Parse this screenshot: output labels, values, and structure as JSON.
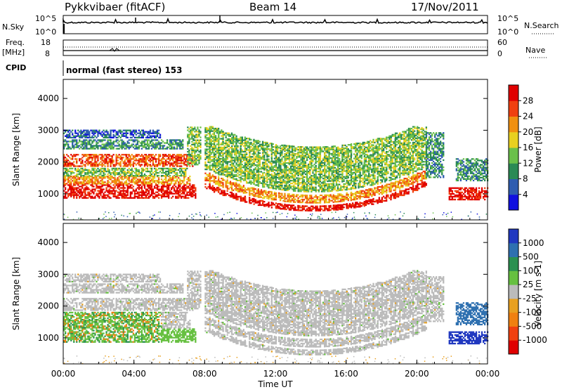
{
  "header": {
    "station": "Pykkvibaer (fitACF)",
    "beam": "Beam 14",
    "date": "17/Nov/2011"
  },
  "strips": {
    "nsky_label": "N.Sky",
    "nsky_ticks": [
      "10^5",
      "10^0"
    ],
    "nsearch_label": "N.Search",
    "nsearch_ticks": [
      "10^5",
      "10^0"
    ],
    "freq_label_1": "Freq.",
    "freq_label_2": "[MHz]",
    "freq_ticks": [
      "18",
      "8"
    ],
    "nave_label": "Nave",
    "nave_ticks": [
      "60",
      "0"
    ],
    "cpid_label": "CPID",
    "cpid_text": "normal (fast stereo) 153"
  },
  "chart_data": [
    {
      "type": "heatmap",
      "title": "",
      "xlabel": "",
      "ylabel": "Slant Range [km]",
      "xlim": [
        0,
        24
      ],
      "ylim": [
        180,
        4600
      ],
      "yticks": [
        "1000",
        "2000",
        "3000",
        "4000"
      ],
      "colorbar": {
        "label": "Power [dB]",
        "ticks": [
          "4",
          "8",
          "12",
          "16",
          "20",
          "24",
          "28"
        ],
        "range": [
          0,
          30
        ],
        "colors": [
          "#1010e0",
          "#2e5cb0",
          "#2a8a55",
          "#6ac04a",
          "#e8d020",
          "#f09010",
          "#f04010",
          "#e00000"
        ]
      }
    },
    {
      "type": "heatmap",
      "title": "",
      "xlabel": "Time UT",
      "ylabel": "Slant Range [km]",
      "xlim": [
        0,
        24
      ],
      "ylim": [
        180,
        4600
      ],
      "yticks": [
        "1000",
        "2000",
        "3000",
        "4000"
      ],
      "xticks": [
        "00:00",
        "04:00",
        "08:00",
        "12:00",
        "16:00",
        "20:00",
        "00:00"
      ],
      "colorbar": {
        "label": "Velocity [m s-1]",
        "ticks": [
          "1000",
          "500",
          "100",
          "25",
          "-25",
          "-100",
          "-500",
          "-1000"
        ],
        "colors": [
          "#2038c0",
          "#2e70b0",
          "#2a9050",
          "#66c040",
          "#bbbbbb",
          "#e8a020",
          "#f08010",
          "#f04010",
          "#e00000"
        ]
      }
    }
  ]
}
